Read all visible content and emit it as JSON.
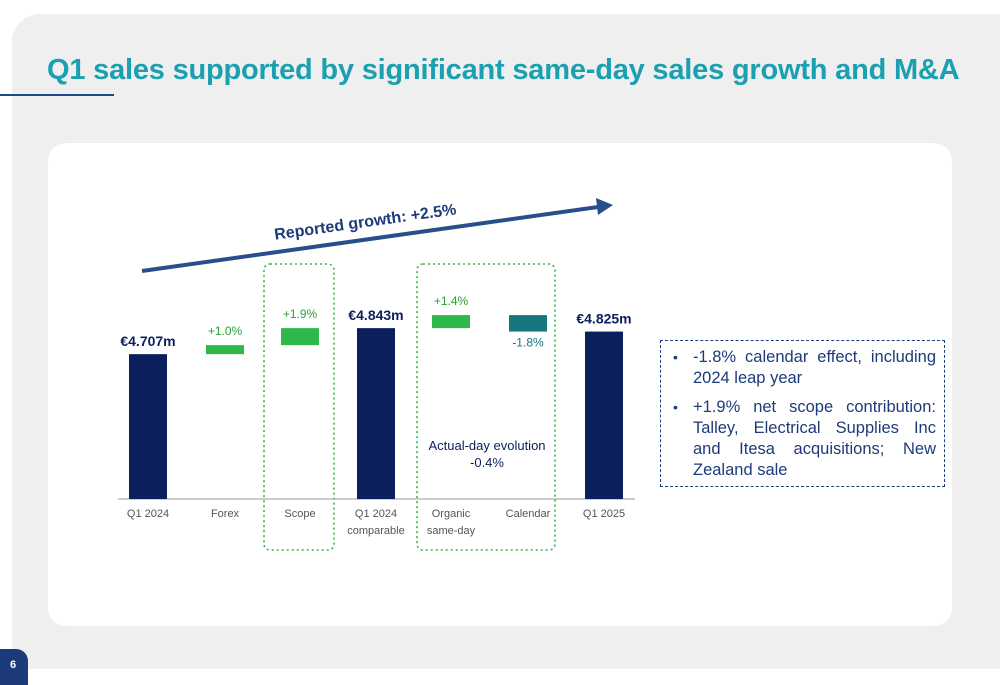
{
  "title": "Q1 sales supported by significant same-day sales growth and M&A",
  "page_number": "6",
  "colors": {
    "title": "#1aa0b0",
    "navy": "#0b1f5c",
    "green": "#2fb84a",
    "teal": "#16767e",
    "arrow": "#2a4e8c",
    "green_text": "#2e9e3c"
  },
  "chart_data": {
    "type": "bar",
    "subtype": "waterfall",
    "unit": "€m",
    "categories": [
      "Q1 2024",
      "Forex",
      "Scope",
      "Q1 2024 comparable",
      "Organic same-day",
      "Calendar",
      "Q1 2025"
    ],
    "category_labels": [
      [
        "Q1 2024"
      ],
      [
        "Forex"
      ],
      [
        "Scope"
      ],
      [
        "Q1 2024",
        "comparable"
      ],
      [
        "Organic",
        "same-day"
      ],
      [
        "Calendar"
      ],
      [
        "Q1 2025"
      ]
    ],
    "bars": [
      {
        "kind": "total",
        "value": 4.707,
        "label": "€4.707m"
      },
      {
        "kind": "delta",
        "start": 4.707,
        "end": 4.754,
        "label": "+1.0%",
        "color": "green"
      },
      {
        "kind": "delta",
        "start": 4.754,
        "end": 4.843,
        "label": "+1.9%",
        "color": "green"
      },
      {
        "kind": "total",
        "value": 4.843,
        "label": "€4.843m"
      },
      {
        "kind": "delta",
        "start": 4.843,
        "end": 4.911,
        "label": "+1.4%",
        "color": "green"
      },
      {
        "kind": "delta",
        "start": 4.911,
        "end": 4.825,
        "label": "-1.8%",
        "color": "teal"
      },
      {
        "kind": "total",
        "value": 4.825,
        "label": "€4.825m"
      }
    ],
    "ylim": [
      3.95,
      4.99
    ],
    "annotations": {
      "reported_growth": "Reported growth: +2.5%",
      "actual_day_line1": "Actual-day evolution",
      "actual_day_line2": "-0.4%"
    },
    "highlight_groups": [
      [
        "Scope"
      ],
      [
        "Organic same-day",
        "Calendar"
      ]
    ],
    "grid": false,
    "legend": "none"
  },
  "notes": [
    "-1.8% calendar effect, including 2024 leap year",
    "+1.9% net scope contribution: Talley, Electrical Supplies Inc and Itesa acquisitions; New Zealand sale"
  ]
}
